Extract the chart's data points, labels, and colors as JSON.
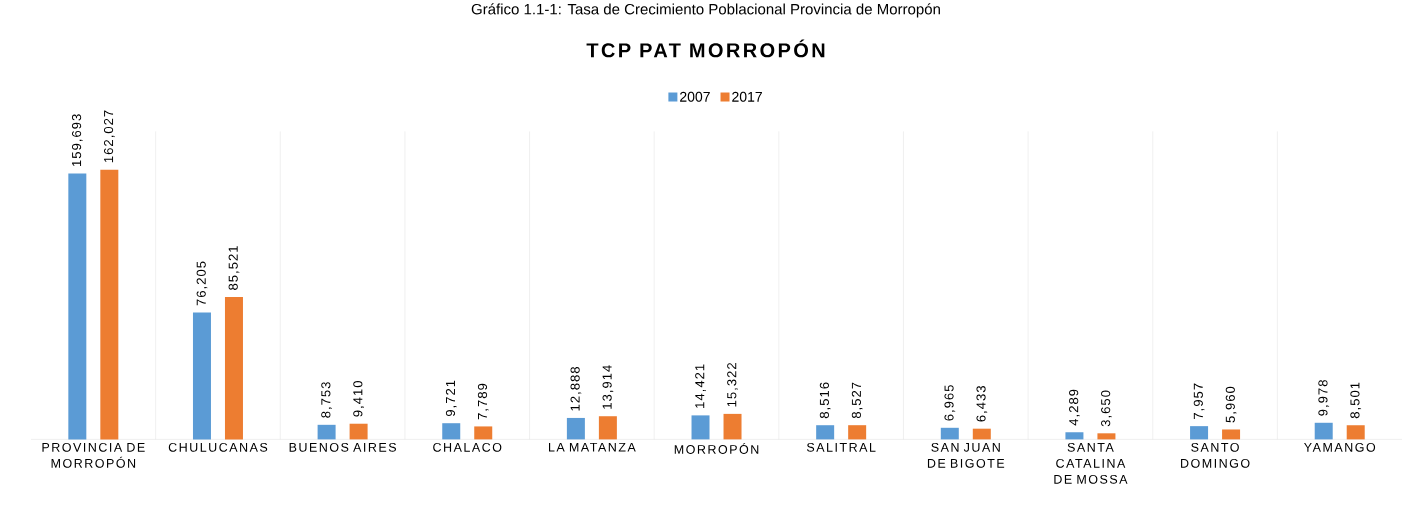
{
  "chart_data": {
    "type": "bar",
    "title": "TCP PAT MORROPÓN",
    "annotations": [
      "Gráfico 1.1-1: Tasa de Crecimiento Poblacional Provincia de Morropón"
    ],
    "categories": [
      "PROVINCIA DE MORROPÓN",
      "CHULUCANAS",
      "BUENOS AIRES",
      "CHALACO",
      "LA MATANZA",
      "MORROPÓN",
      "SALITRAL",
      "SAN JUAN DE BIGOTE",
      "SANTA CATALINA DE MOSSA",
      "SANTO DOMINGO",
      "YAMANGO"
    ],
    "series": [
      {
        "name": "2007",
        "color": "#5b9bd5",
        "values": [
          159693,
          76205,
          8753,
          9721,
          12888,
          14421,
          8516,
          6965,
          4289,
          7957,
          9978
        ],
        "value_labels": [
          "159,693",
          "76,205",
          "8,753",
          "9,721",
          "12,888",
          "14,421",
          "8,516",
          "6,965",
          "4,289",
          "7,957",
          "9,978"
        ]
      },
      {
        "name": "2017",
        "color": "#ed7d31",
        "values": [
          162027,
          85521,
          9410,
          7789,
          13914,
          15322,
          8527,
          6433,
          3650,
          5960,
          8501
        ],
        "value_labels": [
          "162,027",
          "85,521",
          "9,410",
          "7,789",
          "13,914",
          "15,322",
          "8,527",
          "6,433",
          "3,650",
          "5,960",
          "8,501"
        ]
      }
    ],
    "ylim": [
      0,
      185000
    ],
    "tick_labels": "x",
    "grid": "x",
    "legend": "top"
  }
}
